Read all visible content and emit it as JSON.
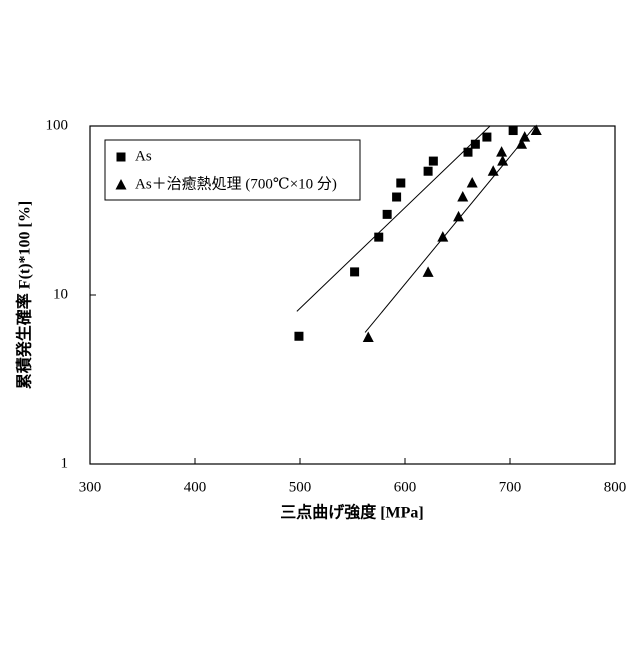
{
  "chart_data": {
    "type": "scatter",
    "log_y": true,
    "x_label": "三点曲げ強度 [MPa]",
    "y_label": "累積発生確率 F(t)*100 [%]",
    "xlim": [
      300,
      800
    ],
    "xticks": [
      300,
      400,
      500,
      600,
      700,
      800
    ],
    "ylim": [
      1,
      100
    ],
    "yticks": [
      1,
      10,
      100
    ],
    "legend": "upper left",
    "series": [
      {
        "name": "As",
        "marker": "square",
        "color": "#000000",
        "x": [
          499,
          552,
          575,
          583,
          592,
          596,
          622,
          627,
          660,
          667,
          678,
          703
        ],
        "values": [
          5.7,
          13.7,
          22,
          30,
          38,
          46,
          54,
          62,
          70,
          78,
          86,
          94
        ],
        "fit": {
          "x": [
            497,
            681
          ],
          "values": [
            8.0,
            100
          ]
        }
      },
      {
        "name": "As＋治癒熱処理 (700℃×10 分)",
        "marker": "triangle",
        "color": "#000000",
        "x": [
          565,
          622,
          636,
          651,
          655,
          664,
          684,
          693,
          692,
          711,
          714,
          725
        ],
        "values": [
          5.6,
          13.6,
          22,
          29,
          38,
          46,
          54,
          62,
          70,
          78,
          86,
          94
        ],
        "fit": {
          "x": [
            562,
            724
          ],
          "values": [
            6.0,
            100
          ]
        }
      }
    ]
  }
}
